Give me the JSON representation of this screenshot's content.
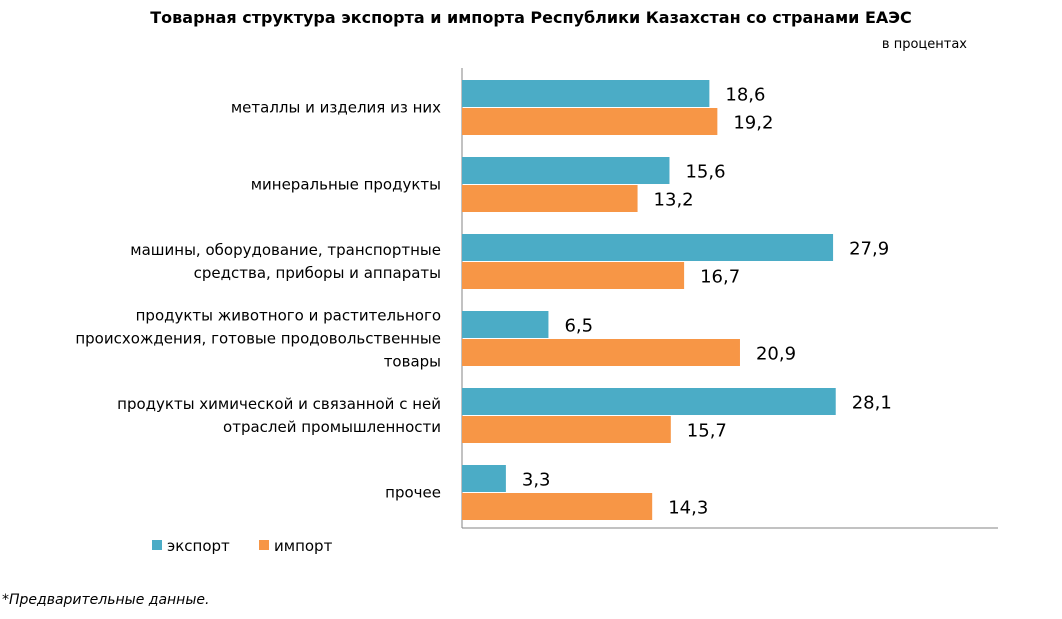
{
  "chart_data": {
    "type": "bar",
    "orientation": "horizontal",
    "title": "Товарная структура экспорта и импорта Республики Казахстан со странами ЕАЭС",
    "units": "в процентах",
    "categories": [
      [
        "металлы и изделия  из них"
      ],
      [
        "минеральные продукты"
      ],
      [
        "машины, оборудование, транспортные",
        "средства, приборы и аппараты"
      ],
      [
        "продукты животного и растительного",
        "происхождения, готовые продовольственные",
        "товары"
      ],
      [
        "продукты химической  и связанной с ней",
        "отраслей промышленности"
      ],
      [
        "прочее"
      ]
    ],
    "series": [
      {
        "name": "экспорт",
        "color": "#4BACC6",
        "values": [
          18.6,
          15.6,
          27.9,
          6.5,
          28.1,
          3.3
        ],
        "labels": [
          "18,6",
          "15,6",
          "27,9",
          "6,5",
          "28,1",
          "3,3"
        ]
      },
      {
        "name": "импорт",
        "color": "#F79646",
        "values": [
          19.2,
          13.2,
          16.7,
          20.9,
          15.7,
          14.3
        ],
        "labels": [
          "19,2",
          "13,2",
          "16,7",
          "20,9",
          "15,7",
          "14,3"
        ]
      }
    ],
    "xlim": [
      0,
      40
    ],
    "grid": false,
    "legend": "bottom-left"
  },
  "footnote": "*Предварительные данные."
}
